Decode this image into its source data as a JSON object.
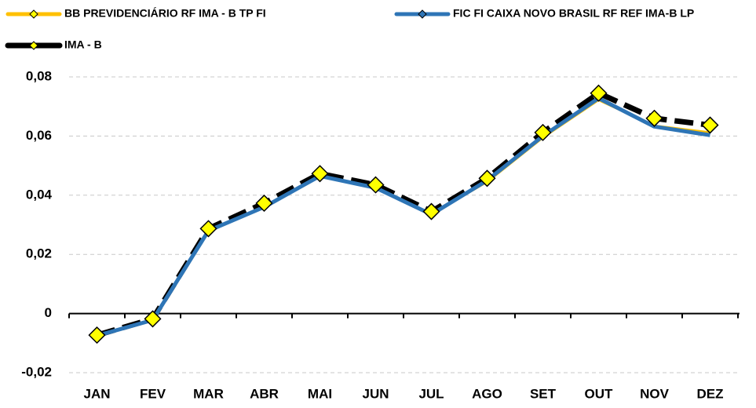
{
  "chart_data": {
    "type": "line",
    "categories": [
      "JAN",
      "FEV",
      "MAR",
      "ABR",
      "MAI",
      "JUN",
      "JUL",
      "AGO",
      "SET",
      "OUT",
      "NOV",
      "DEZ"
    ],
    "series": [
      {
        "name": "BB PREVIDENCIÁRIO RF IMA - B TP FI",
        "color": "#FFC000",
        "values": [
          -0.0074,
          -0.002,
          0.0282,
          0.0362,
          0.0467,
          0.0427,
          0.0337,
          0.0445,
          0.0595,
          0.0722,
          0.0635,
          0.0612
        ]
      },
      {
        "name": "FIC FI CAIXA NOVO BRASIL RF REF IMA-B LP",
        "color": "#2E75B6",
        "values": [
          -0.0075,
          -0.0022,
          0.028,
          0.036,
          0.0465,
          0.0425,
          0.0335,
          0.045,
          0.06,
          0.0728,
          0.0632,
          0.0603
        ]
      },
      {
        "name": "IMA - B",
        "color": "#000000",
        "dashed": true,
        "markers": true,
        "marker_color": "#FFFF00",
        "values": [
          -0.0073,
          -0.0018,
          0.0287,
          0.0373,
          0.0473,
          0.0435,
          0.0345,
          0.0457,
          0.0612,
          0.0745,
          0.066,
          0.0637
        ]
      }
    ],
    "ylim": [
      -0.02,
      0.08
    ],
    "yticks": [
      {
        "value": -0.02,
        "label": "-0,02"
      },
      0,
      {
        "value": 0.02,
        "label": "0,02"
      },
      {
        "value": 0.04,
        "label": "0,04"
      },
      {
        "value": 0.06,
        "label": "0,06"
      },
      {
        "value": 0.08,
        "label": "0,08"
      }
    ],
    "grid": true
  }
}
